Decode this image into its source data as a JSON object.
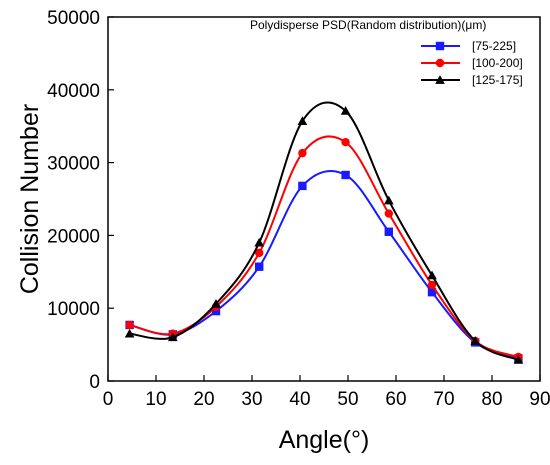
{
  "chart_data": {
    "type": "line",
    "title": "",
    "xlabel": "Angle(°)",
    "ylabel": "Collision Number",
    "xlim": [
      0,
      90
    ],
    "ylim": [
      0,
      50000
    ],
    "xticks": [
      0,
      10,
      20,
      30,
      40,
      50,
      60,
      70,
      80,
      90
    ],
    "yticks": [
      0,
      10000,
      20000,
      30000,
      40000,
      50000
    ],
    "grid": false,
    "legend_title": "Polydisperse PSD(Random distribution)(μm)",
    "legend_position": "top-right",
    "x": [
      4.5,
      13.5,
      22.5,
      31.5,
      40.5,
      49.5,
      58.5,
      67.5,
      76.5,
      85.5
    ],
    "series": [
      {
        "name": "[75-225]",
        "color": "#1a1aff",
        "marker": "square",
        "values": [
          7700,
          6400,
          9600,
          15700,
          26800,
          28300,
          20500,
          12200,
          5300,
          3100
        ]
      },
      {
        "name": "[100-200]",
        "color": "#ff0000",
        "marker": "circle",
        "values": [
          7700,
          6500,
          10200,
          17600,
          31300,
          32800,
          23000,
          13200,
          5500,
          3300
        ]
      },
      {
        "name": "[125-175]",
        "color": "#000000",
        "marker": "triangle",
        "values": [
          6500,
          6000,
          10600,
          19000,
          35700,
          37100,
          24800,
          14500,
          5500,
          2900
        ]
      }
    ]
  }
}
